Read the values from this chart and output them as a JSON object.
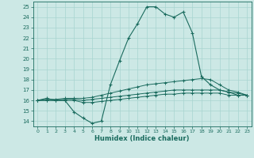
{
  "xlabel": "Humidex (Indice chaleur)",
  "xlim": [
    -0.5,
    23.5
  ],
  "ylim": [
    13.5,
    25.5
  ],
  "yticks": [
    14,
    15,
    16,
    17,
    18,
    19,
    20,
    21,
    22,
    23,
    24,
    25
  ],
  "xticks": [
    0,
    1,
    2,
    3,
    4,
    5,
    6,
    7,
    8,
    9,
    10,
    11,
    12,
    13,
    14,
    15,
    16,
    17,
    18,
    19,
    20,
    21,
    22,
    23
  ],
  "bg_color": "#cce8e5",
  "grid_color": "#a8d4d0",
  "line_color": "#1a6b5e",
  "line1_x": [
    0,
    1,
    2,
    3,
    4,
    5,
    6,
    7,
    8,
    9,
    10,
    11,
    12,
    13,
    14,
    15,
    16,
    17,
    18,
    19,
    20,
    21,
    22,
    23
  ],
  "line1_y": [
    16.0,
    16.2,
    16.0,
    16.0,
    14.9,
    14.3,
    13.8,
    14.0,
    17.5,
    19.8,
    22.0,
    23.4,
    25.0,
    25.0,
    24.3,
    24.0,
    24.5,
    22.5,
    18.3,
    17.5,
    17.0,
    16.8,
    16.5,
    16.5
  ],
  "line2_x": [
    0,
    1,
    2,
    3,
    4,
    5,
    6,
    7,
    8,
    9,
    10,
    11,
    12,
    13,
    14,
    15,
    16,
    17,
    18,
    19,
    20,
    21,
    22,
    23
  ],
  "line2_y": [
    16.0,
    16.1,
    16.1,
    16.2,
    16.2,
    16.2,
    16.3,
    16.5,
    16.7,
    16.9,
    17.1,
    17.3,
    17.5,
    17.6,
    17.7,
    17.8,
    17.9,
    18.0,
    18.1,
    18.0,
    17.5,
    17.0,
    16.8,
    16.5
  ],
  "line3_x": [
    0,
    1,
    2,
    3,
    4,
    5,
    6,
    7,
    8,
    9,
    10,
    11,
    12,
    13,
    14,
    15,
    16,
    17,
    18,
    19,
    20,
    21,
    22,
    23
  ],
  "line3_y": [
    16.0,
    16.0,
    16.0,
    16.1,
    16.1,
    16.0,
    16.1,
    16.2,
    16.3,
    16.4,
    16.5,
    16.6,
    16.7,
    16.8,
    16.9,
    17.0,
    17.0,
    17.0,
    17.0,
    17.0,
    17.0,
    16.8,
    16.7,
    16.5
  ],
  "line4_x": [
    0,
    1,
    2,
    3,
    4,
    5,
    6,
    7,
    8,
    9,
    10,
    11,
    12,
    13,
    14,
    15,
    16,
    17,
    18,
    19,
    20,
    21,
    22,
    23
  ],
  "line4_y": [
    16.0,
    16.0,
    16.0,
    16.0,
    16.0,
    15.8,
    15.8,
    15.9,
    16.0,
    16.1,
    16.2,
    16.3,
    16.4,
    16.5,
    16.6,
    16.6,
    16.7,
    16.7,
    16.7,
    16.7,
    16.7,
    16.5,
    16.5,
    16.5
  ]
}
